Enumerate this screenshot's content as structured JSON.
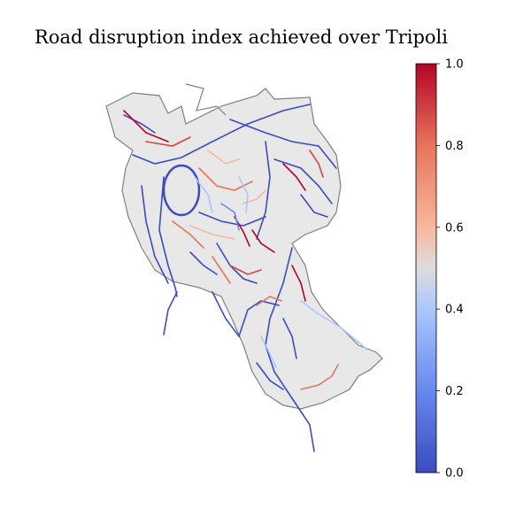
{
  "title": "Road disruption index achieved over Tripoli",
  "colorbar": {
    "min": 0.0,
    "max": 1.0,
    "ticks": [
      "0.0",
      "0.2",
      "0.4",
      "0.6",
      "0.8",
      "1.0"
    ],
    "colormap": "coolwarm",
    "colors": {
      "low": "#3b4cc0",
      "mid": "#dddddd",
      "high": "#b40426"
    }
  },
  "map": {
    "boundary_fill": "#e8e8e8",
    "boundary_stroke": "#808080"
  }
}
